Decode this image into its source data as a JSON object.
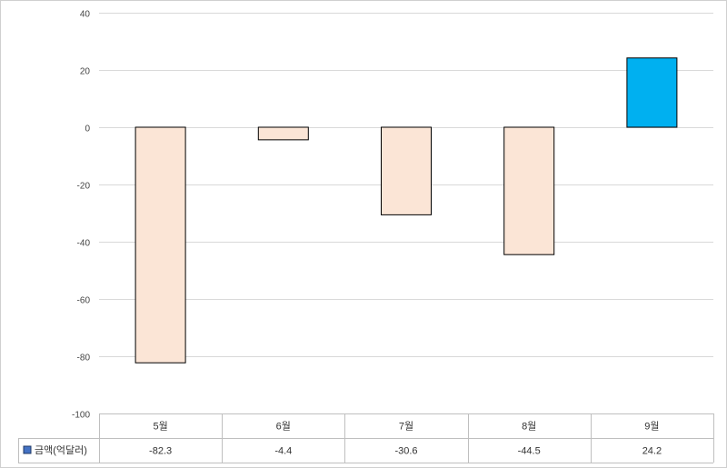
{
  "chart_data": {
    "type": "bar",
    "categories": [
      "5월",
      "6월",
      "7월",
      "8월",
      "9월"
    ],
    "series": [
      {
        "name": "금액(억달러)",
        "values": [
          -82.3,
          -4.4,
          -30.6,
          -44.5,
          24.2
        ]
      }
    ],
    "ylim": [
      -100,
      40
    ],
    "yticks": [
      40,
      20,
      0,
      -20,
      -40,
      -60,
      -80,
      -100
    ],
    "grid": true,
    "legend": "bottom-left data table",
    "colors": {
      "negative_fill": "#fbe5d6",
      "positive_fill": "#00b0f0",
      "bar_stroke": "#000000",
      "legend_marker": "#4472c4",
      "grid": "#d9d9d9"
    }
  }
}
